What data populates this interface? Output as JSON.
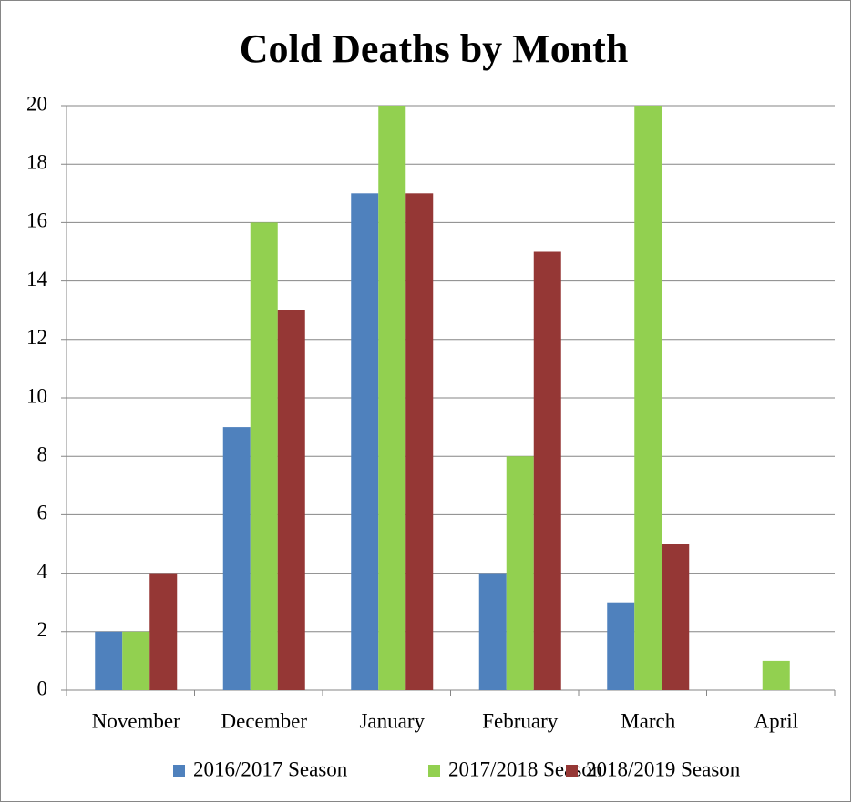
{
  "chart_data": {
    "type": "bar",
    "title": "Cold Deaths by Month",
    "categories": [
      "November",
      "December",
      "January",
      "February",
      "March",
      "April"
    ],
    "series": [
      {
        "name": "2016/2017 Season",
        "color": "#4f81bd",
        "values": [
          2,
          9,
          17,
          4,
          3,
          null
        ]
      },
      {
        "name": "2017/2018 Season",
        "color": "#92d050",
        "values": [
          2,
          16,
          20,
          8,
          20,
          1
        ]
      },
      {
        "name": "2018/2019 Season",
        "color": "#953735",
        "values": [
          4,
          13,
          17,
          15,
          5,
          null
        ]
      }
    ],
    "ylim": [
      0,
      20
    ],
    "yticks": [
      0,
      2,
      4,
      6,
      8,
      10,
      12,
      14,
      16,
      18,
      20
    ],
    "grid": true,
    "legend": "bottom"
  }
}
